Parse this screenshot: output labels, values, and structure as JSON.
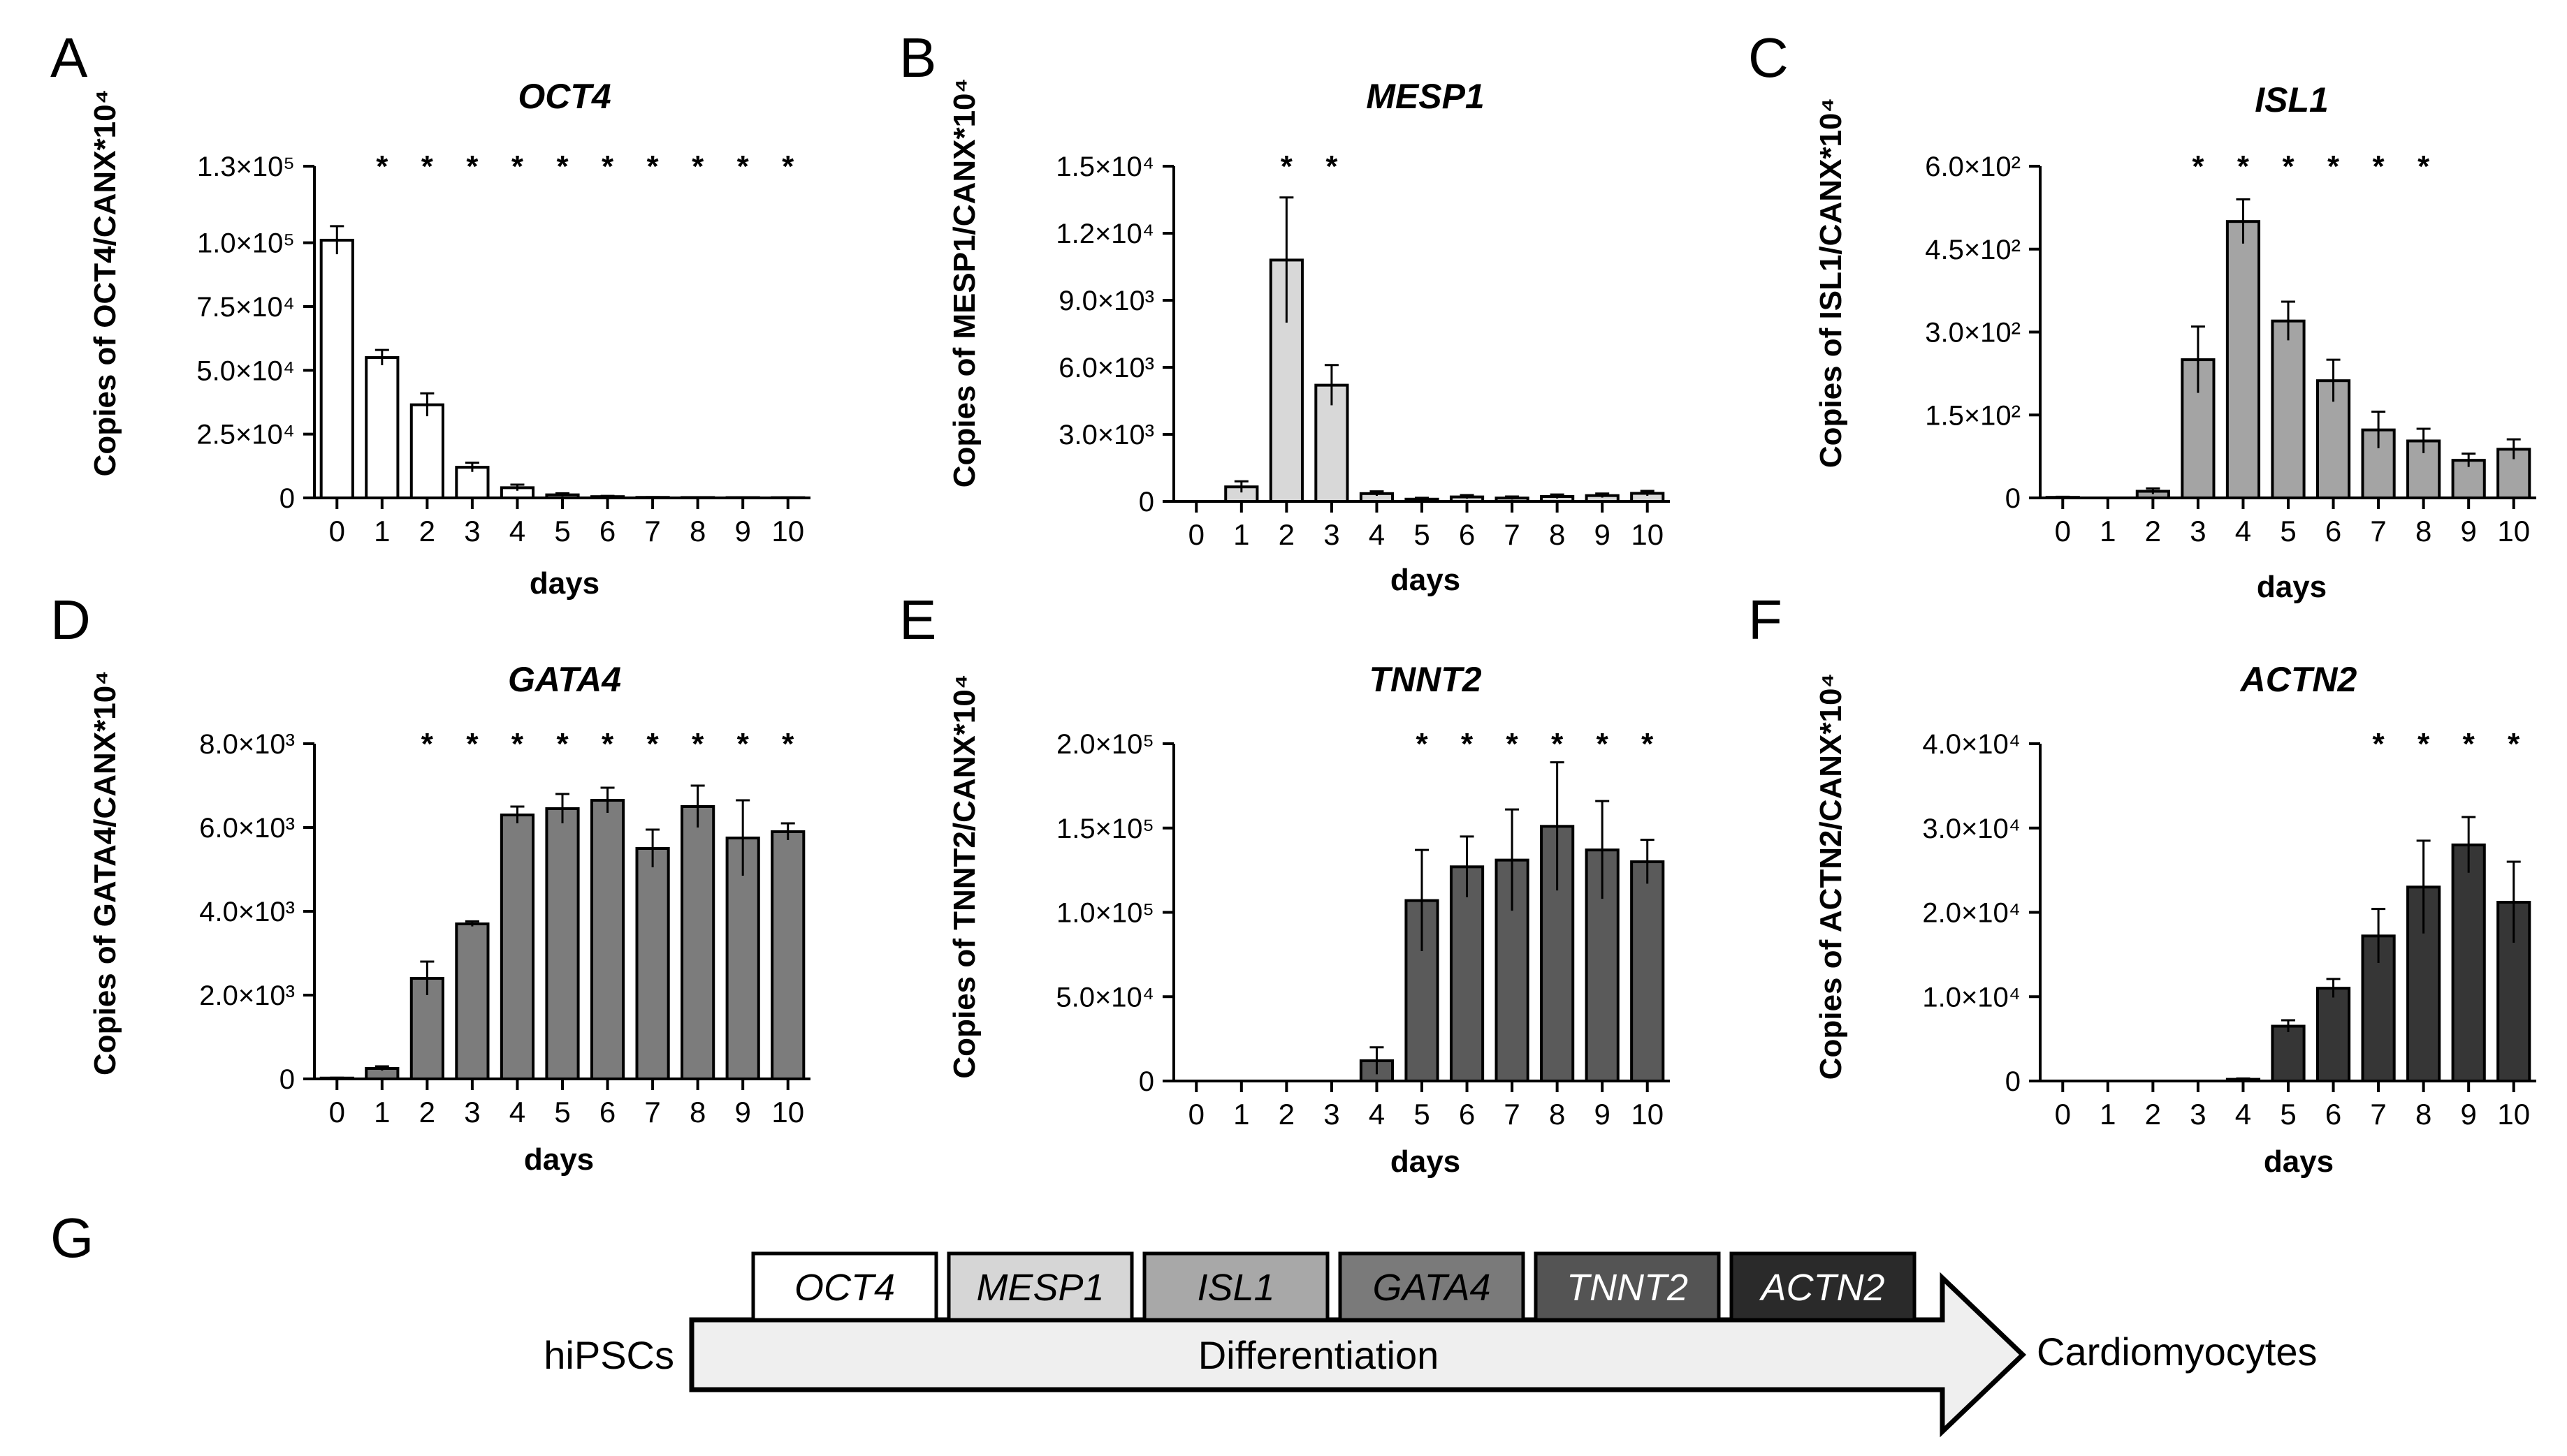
{
  "chart_data": [
    {
      "panel": "A",
      "type": "bar",
      "title": "OCT4",
      "ylabel": "Copies of OCT4/CANX*10⁴",
      "xlabel": "days",
      "categories": [
        "0",
        "1",
        "2",
        "3",
        "4",
        "5",
        "6",
        "7",
        "8",
        "9",
        "10"
      ],
      "values": [
        101000,
        55000,
        36500,
        12000,
        4000,
        1200,
        500,
        200,
        150,
        120,
        100
      ],
      "errors": [
        5500,
        3000,
        4500,
        1800,
        1200,
        600,
        300,
        100,
        80,
        60,
        60
      ],
      "ylim": [
        0,
        130000
      ],
      "yticks": [
        0,
        25000,
        50000,
        75000,
        100000,
        130000
      ],
      "yticklabels": [
        "0",
        "2.5×10⁴",
        "5.0×10⁴",
        "7.5×10⁴",
        "1.0×10⁵",
        "1.3×10⁵"
      ],
      "significance": [
        "",
        "*",
        "*",
        "*",
        "*",
        "*",
        "*",
        "*",
        "*",
        "*",
        "*"
      ],
      "color": "#ffffff"
    },
    {
      "panel": "B",
      "type": "bar",
      "title": "MESP1",
      "ylabel": "Copies of MESP1/CANX*10⁴",
      "xlabel": "days",
      "categories": [
        "0",
        "1",
        "2",
        "3",
        "4",
        "5",
        "6",
        "7",
        "8",
        "9",
        "10"
      ],
      "values": [
        0,
        650,
        10800,
        5200,
        350,
        100,
        200,
        150,
        220,
        260,
        360
      ],
      "errors": [
        0,
        250,
        2800,
        900,
        100,
        60,
        80,
        70,
        90,
        90,
        110
      ],
      "ylim": [
        0,
        15000
      ],
      "yticks": [
        0,
        3000,
        6000,
        9000,
        12000,
        15000
      ],
      "yticklabels": [
        "0",
        "3.0×10³",
        "6.0×10³",
        "9.0×10³",
        "1.2×10⁴",
        "1.5×10⁴"
      ],
      "significance": [
        "",
        "",
        "*",
        "*",
        "",
        "",
        "",
        "",
        "",
        "",
        ""
      ],
      "color": "#d8d8d8"
    },
    {
      "panel": "C",
      "type": "bar",
      "title": "ISL1",
      "ylabel": "Copies of ISL1/CANX*10⁴",
      "xlabel": "days",
      "categories": [
        "0",
        "1",
        "2",
        "3",
        "4",
        "5",
        "6",
        "7",
        "8",
        "9",
        "10"
      ],
      "values": [
        1,
        0,
        12,
        250,
        500,
        320,
        212,
        123,
        103,
        68,
        88
      ],
      "errors": [
        1,
        0,
        5,
        60,
        40,
        35,
        38,
        33,
        22,
        12,
        18
      ],
      "ylim": [
        0,
        600
      ],
      "yticks": [
        0,
        150,
        300,
        450,
        600
      ],
      "yticklabels": [
        "0",
        "1.5×10²",
        "3.0×10²",
        "4.5×10²",
        "6.0×10²"
      ],
      "significance": [
        "",
        "",
        "",
        "*",
        "*",
        "*",
        "*",
        "*",
        "*",
        "",
        ""
      ],
      "color": "#a4a4a4"
    },
    {
      "panel": "D",
      "type": "bar",
      "title": "GATA4",
      "ylabel": "Copies of GATA4/CANX*10⁴",
      "xlabel": "days",
      "categories": [
        "0",
        "1",
        "2",
        "3",
        "4",
        "5",
        "6",
        "7",
        "8",
        "9",
        "10"
      ],
      "values": [
        20,
        250,
        2400,
        3700,
        6300,
        6450,
        6650,
        5500,
        6500,
        5750,
        5900
      ],
      "errors": [
        10,
        50,
        400,
        60,
        200,
        350,
        300,
        450,
        500,
        900,
        200
      ],
      "ylim": [
        0,
        8000
      ],
      "yticks": [
        0,
        2000,
        4000,
        6000,
        8000
      ],
      "yticklabels": [
        "0",
        "2.0×10³",
        "4.0×10³",
        "6.0×10³",
        "8.0×10³"
      ],
      "significance": [
        "",
        "",
        "*",
        "*",
        "*",
        "*",
        "*",
        "*",
        "*",
        "*",
        "*"
      ],
      "color": "#7c7c7c"
    },
    {
      "panel": "E",
      "type": "bar",
      "title": "TNNT2",
      "ylabel": "Copies of TNNT2/CANX*10⁴",
      "xlabel": "days",
      "categories": [
        "0",
        "1",
        "2",
        "3",
        "4",
        "5",
        "6",
        "7",
        "8",
        "9",
        "10"
      ],
      "values": [
        0,
        0,
        0,
        0,
        12000,
        107000,
        127000,
        131000,
        151000,
        137000,
        130000
      ],
      "errors": [
        0,
        0,
        0,
        0,
        8000,
        30000,
        18000,
        30000,
        38000,
        29000,
        13000
      ],
      "ylim": [
        0,
        200000
      ],
      "yticks": [
        0,
        50000,
        100000,
        150000,
        200000
      ],
      "yticklabels": [
        "0",
        "5.0×10⁴",
        "1.0×10⁵",
        "1.5×10⁵",
        "2.0×10⁵"
      ],
      "significance": [
        "",
        "",
        "",
        "",
        "",
        "*",
        "*",
        "*",
        "*",
        "*",
        "*"
      ],
      "color": "#5a5a5a"
    },
    {
      "panel": "F",
      "type": "bar",
      "title": "ACTN2",
      "ylabel": "Copies of ACTN2/CANX*10⁴",
      "xlabel": "days",
      "categories": [
        "0",
        "1",
        "2",
        "3",
        "4",
        "5",
        "6",
        "7",
        "8",
        "9",
        "10"
      ],
      "values": [
        0,
        0,
        0,
        0,
        200,
        6500,
        11000,
        17200,
        23000,
        28000,
        21200
      ],
      "errors": [
        0,
        0,
        0,
        0,
        100,
        700,
        1100,
        3200,
        5500,
        3300,
        4800
      ],
      "ylim": [
        0,
        40000
      ],
      "yticks": [
        0,
        10000,
        20000,
        30000,
        40000
      ],
      "yticklabels": [
        "0",
        "1.0×10⁴",
        "2.0×10⁴",
        "3.0×10⁴",
        "4.0×10⁴"
      ],
      "significance": [
        "",
        "",
        "",
        "",
        "",
        "",
        "",
        "*",
        "*",
        "*",
        "*"
      ],
      "color": "#363636"
    }
  ],
  "panel_g": {
    "label": "G",
    "start": "hiPSCs",
    "end": "Cardiomyocytes",
    "process": "Differentiation",
    "stages": [
      {
        "name": "OCT4",
        "fill": "#ffffff",
        "text": "#000000"
      },
      {
        "name": "MESP1",
        "fill": "#d6d6d6",
        "text": "#000000"
      },
      {
        "name": "ISL1",
        "fill": "#a8a8a8",
        "text": "#000000"
      },
      {
        "name": "GATA4",
        "fill": "#7a7a7a",
        "text": "#000000"
      },
      {
        "name": "TNNT2",
        "fill": "#545454",
        "text": "#ffffff"
      },
      {
        "name": "ACTN2",
        "fill": "#2a2a2a",
        "text": "#ffffff"
      }
    ],
    "arrow_fill": "#efefef"
  }
}
